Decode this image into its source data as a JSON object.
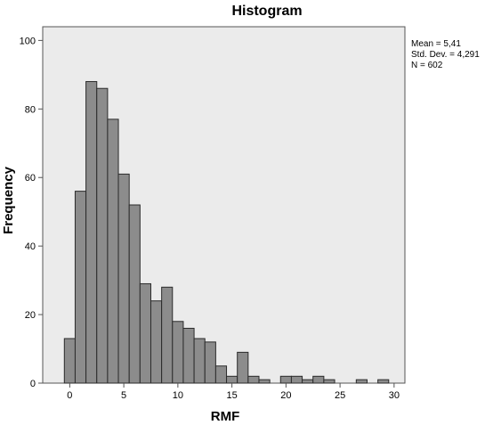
{
  "chart_data": {
    "type": "bar",
    "title": "Histogram",
    "xlabel": "RMF",
    "ylabel": "Frequency",
    "bin_width": 1,
    "x": [
      0,
      1,
      2,
      3,
      4,
      5,
      6,
      7,
      8,
      9,
      10,
      11,
      12,
      13,
      14,
      15,
      16,
      17,
      18,
      19,
      20,
      21,
      22,
      23,
      24,
      25,
      26,
      27,
      28,
      29
    ],
    "values": [
      13,
      56,
      88,
      86,
      77,
      61,
      52,
      29,
      24,
      28,
      18,
      16,
      13,
      12,
      5,
      2,
      9,
      2,
      1,
      0,
      2,
      2,
      1,
      2,
      1,
      0,
      0,
      1,
      0,
      1
    ],
    "xlim": [
      -2.5,
      31
    ],
    "ylim": [
      0,
      104
    ],
    "xticks": [
      "0",
      "5",
      "10",
      "15",
      "20",
      "25",
      "30"
    ],
    "yticks": [
      "0",
      "20",
      "40",
      "60",
      "80",
      "100"
    ],
    "grid": false,
    "stats": {
      "mean": "Mean = 5,41",
      "std": "Std. Dev. = 4,291",
      "n": "N = 602"
    },
    "colors": {
      "bar": "#8c8c8c",
      "plot_bg": "#ebebeb"
    }
  }
}
